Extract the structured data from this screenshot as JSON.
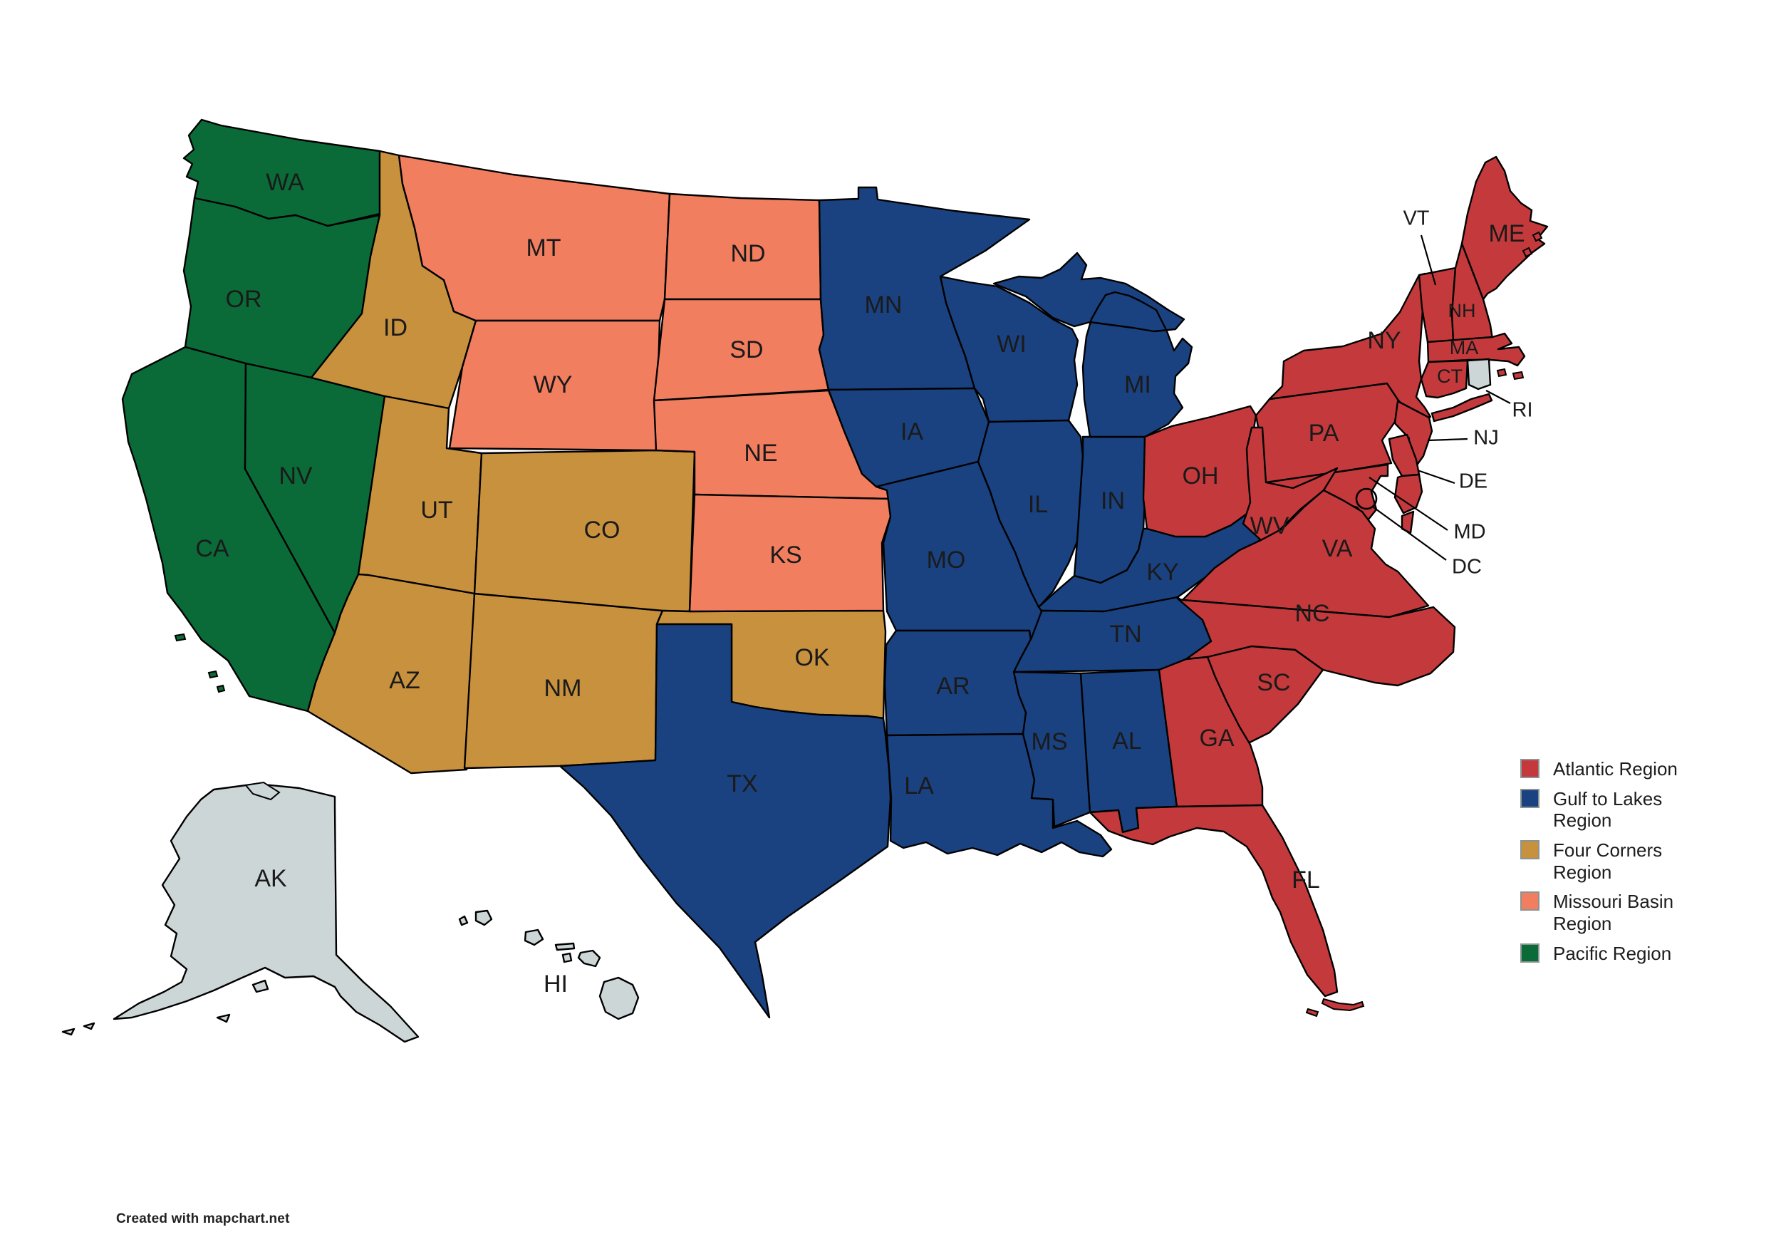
{
  "map": {
    "states": [
      {
        "id": "WA",
        "label": "WA",
        "region": "pacific"
      },
      {
        "id": "OR",
        "label": "OR",
        "region": "pacific"
      },
      {
        "id": "CA",
        "label": "CA",
        "region": "pacific"
      },
      {
        "id": "NV",
        "label": "NV",
        "region": "pacific"
      },
      {
        "id": "ID",
        "label": "ID",
        "region": "four_corners"
      },
      {
        "id": "UT",
        "label": "UT",
        "region": "four_corners"
      },
      {
        "id": "AZ",
        "label": "AZ",
        "region": "four_corners"
      },
      {
        "id": "NM",
        "label": "NM",
        "region": "four_corners"
      },
      {
        "id": "CO",
        "label": "CO",
        "region": "four_corners"
      },
      {
        "id": "OK",
        "label": "OK",
        "region": "four_corners"
      },
      {
        "id": "MT",
        "label": "MT",
        "region": "missouri"
      },
      {
        "id": "WY",
        "label": "WY",
        "region": "missouri"
      },
      {
        "id": "ND",
        "label": "ND",
        "region": "missouri"
      },
      {
        "id": "SD",
        "label": "SD",
        "region": "missouri"
      },
      {
        "id": "NE",
        "label": "NE",
        "region": "missouri"
      },
      {
        "id": "KS",
        "label": "KS",
        "region": "missouri"
      },
      {
        "id": "MN",
        "label": "MN",
        "region": "gulf"
      },
      {
        "id": "IA",
        "label": "IA",
        "region": "gulf"
      },
      {
        "id": "MO",
        "label": "MO",
        "region": "gulf"
      },
      {
        "id": "AR",
        "label": "AR",
        "region": "gulf"
      },
      {
        "id": "LA",
        "label": "LA",
        "region": "gulf"
      },
      {
        "id": "WI",
        "label": "WI",
        "region": "gulf"
      },
      {
        "id": "IL",
        "label": "IL",
        "region": "gulf"
      },
      {
        "id": "IN",
        "label": "IN",
        "region": "gulf"
      },
      {
        "id": "MI",
        "label": "MI",
        "region": "gulf"
      },
      {
        "id": "KY",
        "label": "KY",
        "region": "gulf"
      },
      {
        "id": "TN",
        "label": "TN",
        "region": "gulf"
      },
      {
        "id": "MS",
        "label": "MS",
        "region": "gulf"
      },
      {
        "id": "AL",
        "label": "AL",
        "region": "gulf"
      },
      {
        "id": "TX",
        "label": "TX",
        "region": "gulf"
      },
      {
        "id": "OH",
        "label": "OH",
        "region": "atlantic"
      },
      {
        "id": "PA",
        "label": "PA",
        "region": "atlantic"
      },
      {
        "id": "NY",
        "label": "NY",
        "region": "atlantic"
      },
      {
        "id": "ME",
        "label": "ME",
        "region": "atlantic"
      },
      {
        "id": "VT",
        "label": "VT",
        "region": "atlantic"
      },
      {
        "id": "NH",
        "label": "NH",
        "region": "atlantic"
      },
      {
        "id": "MA",
        "label": "MA",
        "region": "atlantic"
      },
      {
        "id": "CT",
        "label": "CT",
        "region": "atlantic"
      },
      {
        "id": "RI",
        "label": "RI",
        "region": null
      },
      {
        "id": "NJ",
        "label": "NJ",
        "region": "atlantic"
      },
      {
        "id": "DE",
        "label": "DE",
        "region": "atlantic"
      },
      {
        "id": "MD",
        "label": "MD",
        "region": "atlantic"
      },
      {
        "id": "DC",
        "label": "DC",
        "region": "atlantic"
      },
      {
        "id": "WV",
        "label": "WV",
        "region": "atlantic"
      },
      {
        "id": "VA",
        "label": "VA",
        "region": "atlantic"
      },
      {
        "id": "NC",
        "label": "NC",
        "region": "atlantic"
      },
      {
        "id": "SC",
        "label": "SC",
        "region": "atlantic"
      },
      {
        "id": "GA",
        "label": "GA",
        "region": "atlantic"
      },
      {
        "id": "FL",
        "label": "FL",
        "region": "atlantic"
      }
    ],
    "other_states": [
      {
        "id": "AK",
        "label": "AK",
        "region": null
      },
      {
        "id": "HI",
        "label": "HI",
        "region": null
      }
    ],
    "no_region_color": "#cdd6d7",
    "border_color": "#000000"
  },
  "regions": {
    "atlantic": {
      "label": "Atlantic Region",
      "color": "#c43a3c"
    },
    "gulf": {
      "label": "Gulf to Lakes Region",
      "color": "#1a4280"
    },
    "four_corners": {
      "label": "Four Corners Region",
      "color": "#c8913e"
    },
    "missouri": {
      "label": "Missouri Basin Region",
      "color": "#f27e60"
    },
    "pacific": {
      "label": "Pacific Region",
      "color": "#0b6b38"
    }
  },
  "legend": {
    "items": [
      "atlantic",
      "gulf",
      "four_corners",
      "missouri",
      "pacific"
    ]
  },
  "footer": {
    "credit": "Created with mapchart.net"
  }
}
